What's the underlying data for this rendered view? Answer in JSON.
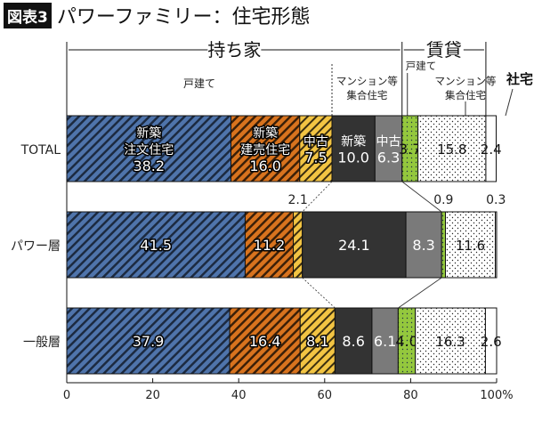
{
  "title": {
    "badge": "図表3",
    "text": "パワーファミリー：住宅形態"
  },
  "chart_data": {
    "type": "bar",
    "orientation": "horizontal",
    "stacked": true,
    "xlim": [
      0,
      100
    ],
    "x_ticks": [
      "0",
      "20",
      "40",
      "60",
      "80",
      "100%"
    ],
    "groups": {
      "owned": "持ち家",
      "rented": "賃貸",
      "company": "社宅"
    },
    "subheaders": {
      "owned_detached": "戸建て",
      "owned_apartment": [
        "マンション等",
        "集合住宅"
      ],
      "rented_detached": "戸建て",
      "rented_apartment": [
        "マンション等",
        "集合住宅"
      ]
    },
    "segment_labels": [
      [
        "新築",
        "注文住宅"
      ],
      [
        "新築",
        "建売住宅"
      ],
      [
        "中古"
      ],
      [
        "新築"
      ],
      [
        "中古"
      ],
      [],
      [],
      []
    ],
    "segment_colors": [
      "#4f74ab",
      "#d8731e",
      "#f2c443",
      "#333333",
      "#7a7a7a",
      "#94c83d",
      "#ffffff",
      "#ffffff"
    ],
    "categories": [
      "TOTAL",
      "パワー層",
      "一般層"
    ],
    "rows": [
      {
        "label": "TOTAL",
        "values": [
          38.2,
          16.0,
          7.5,
          10.0,
          6.3,
          3.7,
          15.8,
          2.4
        ],
        "labels": [
          "38.2",
          "16.0",
          "7.5",
          "10.0",
          "6.3",
          "3.7",
          "15.8",
          "2.4"
        ]
      },
      {
        "label": "パワー層",
        "values": [
          41.5,
          11.2,
          2.1,
          24.1,
          8.3,
          0.9,
          11.6,
          0.3
        ],
        "labels": [
          "41.5",
          "11.2",
          "2.1",
          "24.1",
          "8.3",
          "0.9",
          "11.6",
          "0.3"
        ]
      },
      {
        "label": "一般層",
        "values": [
          37.9,
          16.4,
          8.1,
          8.6,
          6.1,
          4.0,
          16.3,
          2.6
        ],
        "labels": [
          "37.9",
          "16.4",
          "8.1",
          "8.6",
          "6.1",
          "4.0",
          "16.3",
          "2.6"
        ]
      }
    ]
  }
}
